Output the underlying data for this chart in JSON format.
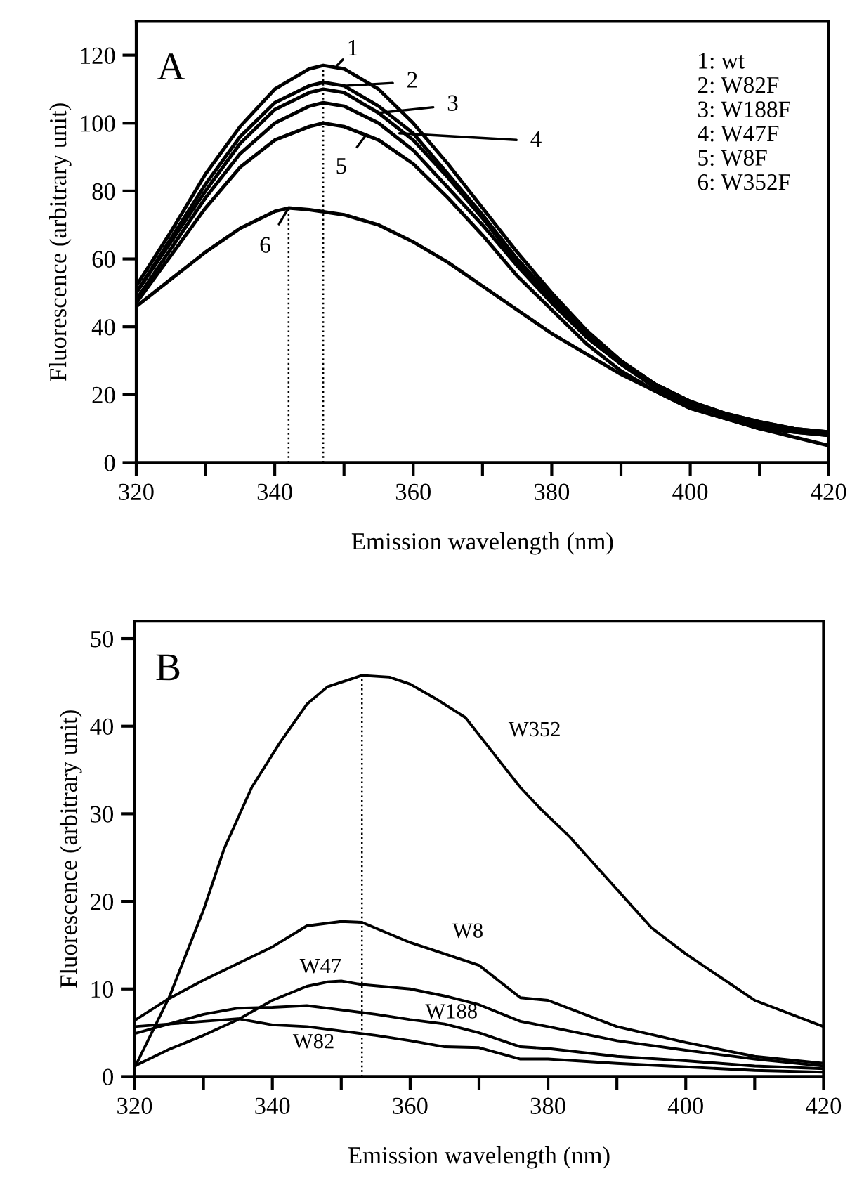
{
  "chart_data": [
    {
      "type": "line",
      "title": "A",
      "xlabel": "Emission wavelength (nm)",
      "ylabel": "Fluorescence (arbitrary unit)",
      "xlim": [
        320,
        420
      ],
      "xticks": [
        320,
        {
          "value": 330,
          "label": null
        },
        340,
        {
          "value": 350,
          "label": null
        },
        360,
        {
          "value": 370,
          "label": null
        },
        380,
        {
          "value": 390,
          "label": null
        },
        400,
        {
          "value": 410,
          "label": null
        },
        420
      ],
      "ylim": [
        0,
        130
      ],
      "yticks": [
        0,
        20,
        40,
        60,
        80,
        100,
        120
      ],
      "grid": false,
      "legend": false,
      "marker": "none",
      "line_style": "solid",
      "series": [
        {
          "color": "#000000",
          "x": [
            320,
            325,
            330,
            335,
            340,
            345,
            347,
            350,
            355,
            360,
            365,
            370,
            375,
            380,
            385,
            390,
            395,
            400,
            405,
            410,
            415,
            420
          ],
          "values": [
            52,
            68,
            85,
            99,
            110,
            116,
            117,
            116,
            110,
            100,
            88,
            75,
            62,
            50,
            39,
            30,
            23,
            18,
            14.5,
            12,
            10,
            9
          ]
        },
        {
          "color": "#000000",
          "x": [
            320,
            325,
            330,
            335,
            340,
            345,
            347,
            350,
            355,
            360,
            365,
            370,
            375,
            380,
            385,
            390,
            395,
            400,
            405,
            410,
            415,
            420
          ],
          "values": [
            50,
            66,
            82,
            96,
            106,
            111,
            112,
            111,
            105,
            97,
            85,
            73,
            60,
            49,
            38,
            30,
            23,
            18,
            14.5,
            12,
            10,
            9
          ]
        },
        {
          "color": "#000000",
          "x": [
            320,
            325,
            330,
            335,
            340,
            345,
            347,
            350,
            355,
            360,
            365,
            370,
            375,
            380,
            385,
            390,
            395,
            400,
            405,
            410,
            415,
            420
          ],
          "values": [
            50,
            65,
            80,
            94,
            104,
            109,
            110,
            109,
            103,
            95,
            84,
            72,
            59,
            48,
            37,
            29,
            23,
            18,
            14,
            11,
            9.5,
            8
          ]
        },
        {
          "color": "#000000",
          "x": [
            320,
            325,
            330,
            335,
            340,
            345,
            347,
            350,
            355,
            360,
            365,
            370,
            375,
            380,
            385,
            390,
            395,
            400,
            405,
            410,
            415,
            420
          ],
          "values": [
            48,
            63,
            78,
            91,
            100,
            105,
            106,
            105,
            100,
            92,
            81,
            70,
            58,
            47,
            37,
            29,
            22,
            17,
            14,
            11,
            9,
            8
          ]
        },
        {
          "color": "#000000",
          "x": [
            320,
            325,
            330,
            335,
            340,
            345,
            347,
            350,
            355,
            360,
            365,
            370,
            375,
            380,
            385,
            390,
            395,
            400,
            405,
            410,
            415,
            420
          ],
          "values": [
            47,
            61,
            75,
            87,
            95,
            99,
            100,
            99,
            95,
            88,
            78,
            67,
            55,
            45,
            35,
            27,
            21,
            16,
            13,
            10,
            9,
            8
          ]
        },
        {
          "color": "#000000",
          "x": [
            320,
            325,
            330,
            335,
            340,
            342,
            345,
            350,
            355,
            360,
            365,
            370,
            375,
            380,
            385,
            390,
            395,
            400,
            405,
            410,
            415,
            420
          ],
          "values": [
            46,
            54,
            62,
            69,
            74,
            75,
            74.5,
            73,
            70,
            65,
            59,
            52,
            45,
            38,
            32,
            26,
            21,
            16,
            13,
            10,
            7.5,
            5
          ]
        },
        {
          "color": "#000000",
          "line_style": "dotted",
          "x": [
            347,
            347
          ],
          "values": [
            0,
            117
          ]
        },
        {
          "color": "#000000",
          "line_style": "dotted",
          "x": [
            342,
            342
          ],
          "values": [
            0,
            75
          ]
        }
      ],
      "annotations": [
        {
          "text": "1",
          "x": 349,
          "y": 117
        },
        {
          "text": "2",
          "x": 350,
          "y": 111
        },
        {
          "text": "3",
          "x": 355,
          "y": 103
        },
        {
          "text": "4",
          "x": 358,
          "y": 97
        },
        {
          "text": "5",
          "x": 353,
          "y": 96
        },
        {
          "text": "6",
          "x": 342,
          "y": 75
        },
        "1: wt",
        "2: W82F",
        "3: W188F",
        "4: W47F",
        "5: W8F",
        "6: W352F"
      ]
    },
    {
      "type": "line",
      "title": "B",
      "xlabel": "Emission wavelength (nm)",
      "ylabel": "Fluorescence (arbitrary unit)",
      "xlim": [
        320,
        420
      ],
      "xticks": [
        320,
        {
          "value": 330,
          "label": null
        },
        340,
        {
          "value": 350,
          "label": null
        },
        360,
        {
          "value": 370,
          "label": null
        },
        380,
        {
          "value": 390,
          "label": null
        },
        400,
        {
          "value": 410,
          "label": null
        },
        420
      ],
      "ylim": [
        0,
        52
      ],
      "yticks": [
        0,
        10,
        20,
        30,
        40,
        50
      ],
      "grid": false,
      "legend": false,
      "marker": "none",
      "line_style": "solid",
      "series": [
        {
          "name": "W352",
          "color": "#000000",
          "x": [
            320,
            325,
            330,
            333,
            337,
            341,
            345,
            348,
            353,
            357,
            360,
            364,
            368,
            372,
            376,
            379,
            383,
            387,
            391,
            395,
            400,
            410,
            420
          ],
          "values": [
            1,
            9,
            19,
            26,
            33,
            38,
            42.5,
            44.5,
            45.8,
            45.6,
            44.8,
            43,
            41,
            37,
            33,
            30.5,
            27.5,
            24,
            20.5,
            17,
            14,
            8.7,
            5.7
          ]
        },
        {
          "name": "W8",
          "color": "#000000",
          "x": [
            320,
            325,
            330,
            340,
            345,
            350,
            353,
            360,
            370,
            376,
            380,
            390,
            400,
            410,
            420
          ],
          "values": [
            6.4,
            8.9,
            11,
            14.8,
            17.2,
            17.7,
            17.6,
            15.3,
            12.7,
            9,
            8.7,
            5.7,
            3.9,
            2.3,
            1.5
          ]
        },
        {
          "name": "W47",
          "color": "#000000",
          "x": [
            320,
            325,
            330,
            335,
            340,
            345,
            348,
            350,
            353,
            360,
            365,
            370,
            376,
            380,
            390,
            400,
            410,
            420
          ],
          "values": [
            1.2,
            3.1,
            4.7,
            6.5,
            8.7,
            10.3,
            10.8,
            10.9,
            10.5,
            10,
            9.2,
            8.2,
            6.3,
            5.7,
            4.1,
            3,
            2,
            1.2
          ]
        },
        {
          "name": "W188",
          "color": "#000000",
          "x": [
            320,
            325,
            330,
            335,
            340,
            345,
            350,
            355,
            360,
            365,
            370,
            376,
            380,
            390,
            400,
            410,
            420
          ],
          "values": [
            4.9,
            6,
            7.1,
            7.8,
            7.9,
            8.1,
            7.6,
            7.1,
            6.5,
            6,
            5,
            3.4,
            3.2,
            2.3,
            1.8,
            1.2,
            0.9
          ]
        },
        {
          "name": "W82",
          "color": "#000000",
          "x": [
            320,
            325,
            330,
            335,
            340,
            345,
            350,
            355,
            360,
            365,
            370,
            376,
            380,
            390,
            400,
            410,
            420
          ],
          "values": [
            5.7,
            6,
            6.3,
            6.6,
            5.9,
            5.7,
            5.2,
            4.7,
            4.1,
            3.4,
            3.3,
            2,
            2,
            1.5,
            1.1,
            0.7,
            0.5
          ]
        },
        {
          "color": "#000000",
          "line_style": "dotted",
          "x": [
            353,
            353
          ],
          "values": [
            0,
            45.8
          ]
        }
      ]
    }
  ]
}
